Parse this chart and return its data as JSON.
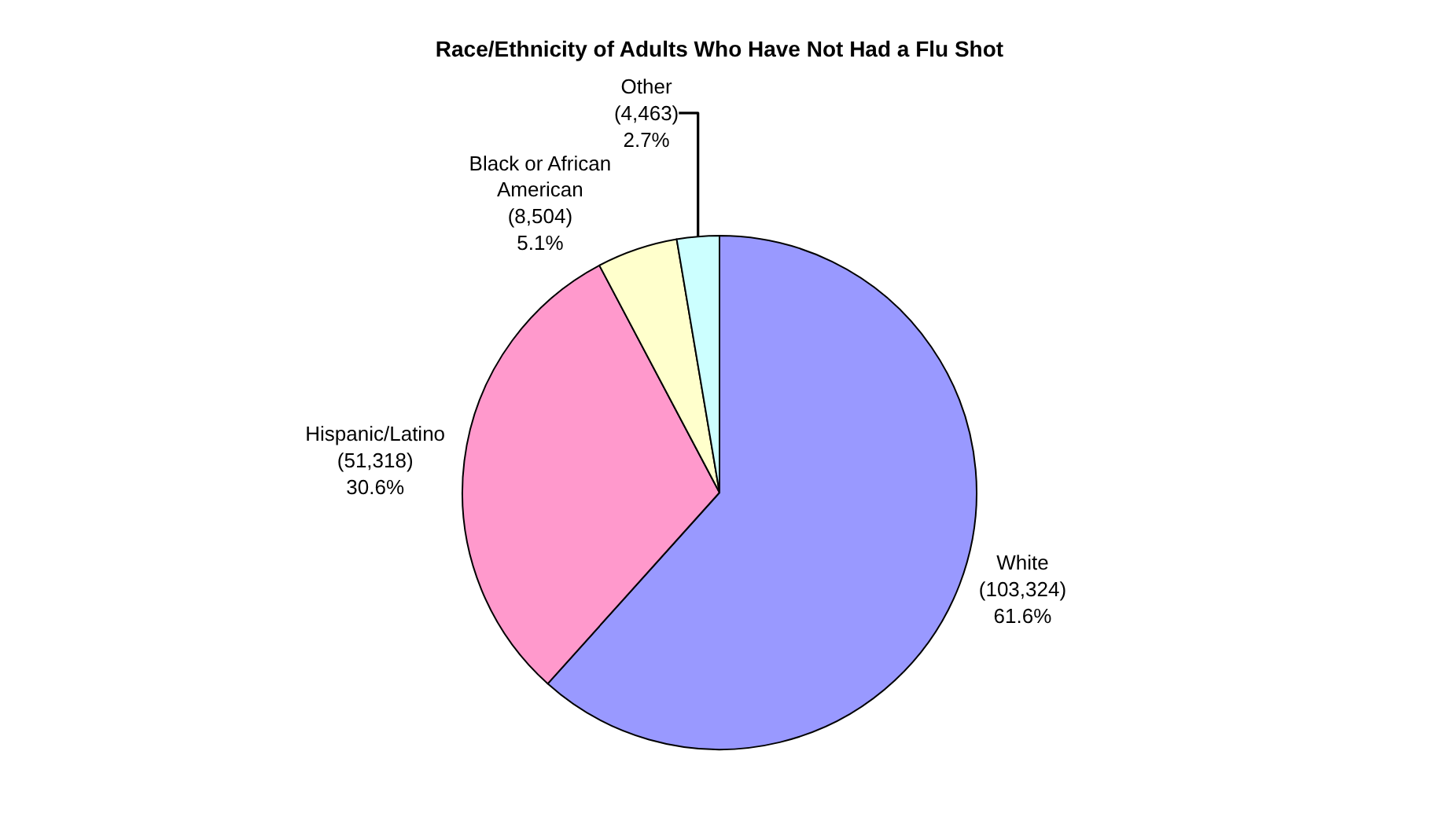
{
  "chart_data": {
    "type": "pie",
    "title": "Race/Ethnicity of Adults Who Have Not Had a Flu Shot",
    "categories": [
      "White",
      "Hispanic/Latino",
      "Black or African American",
      "Other"
    ],
    "values": [
      103324,
      51318,
      8504,
      4463
    ],
    "colors": [
      "#9999ff",
      "#ff99cc",
      "#ffffcc",
      "#ccffff"
    ],
    "value_labels": [
      "(103,324)\n61.6%",
      "(51,318)\n30.6%",
      "(8,504)\n5.1%",
      "(4,463)\n2.7%"
    ],
    "legend": false
  }
}
